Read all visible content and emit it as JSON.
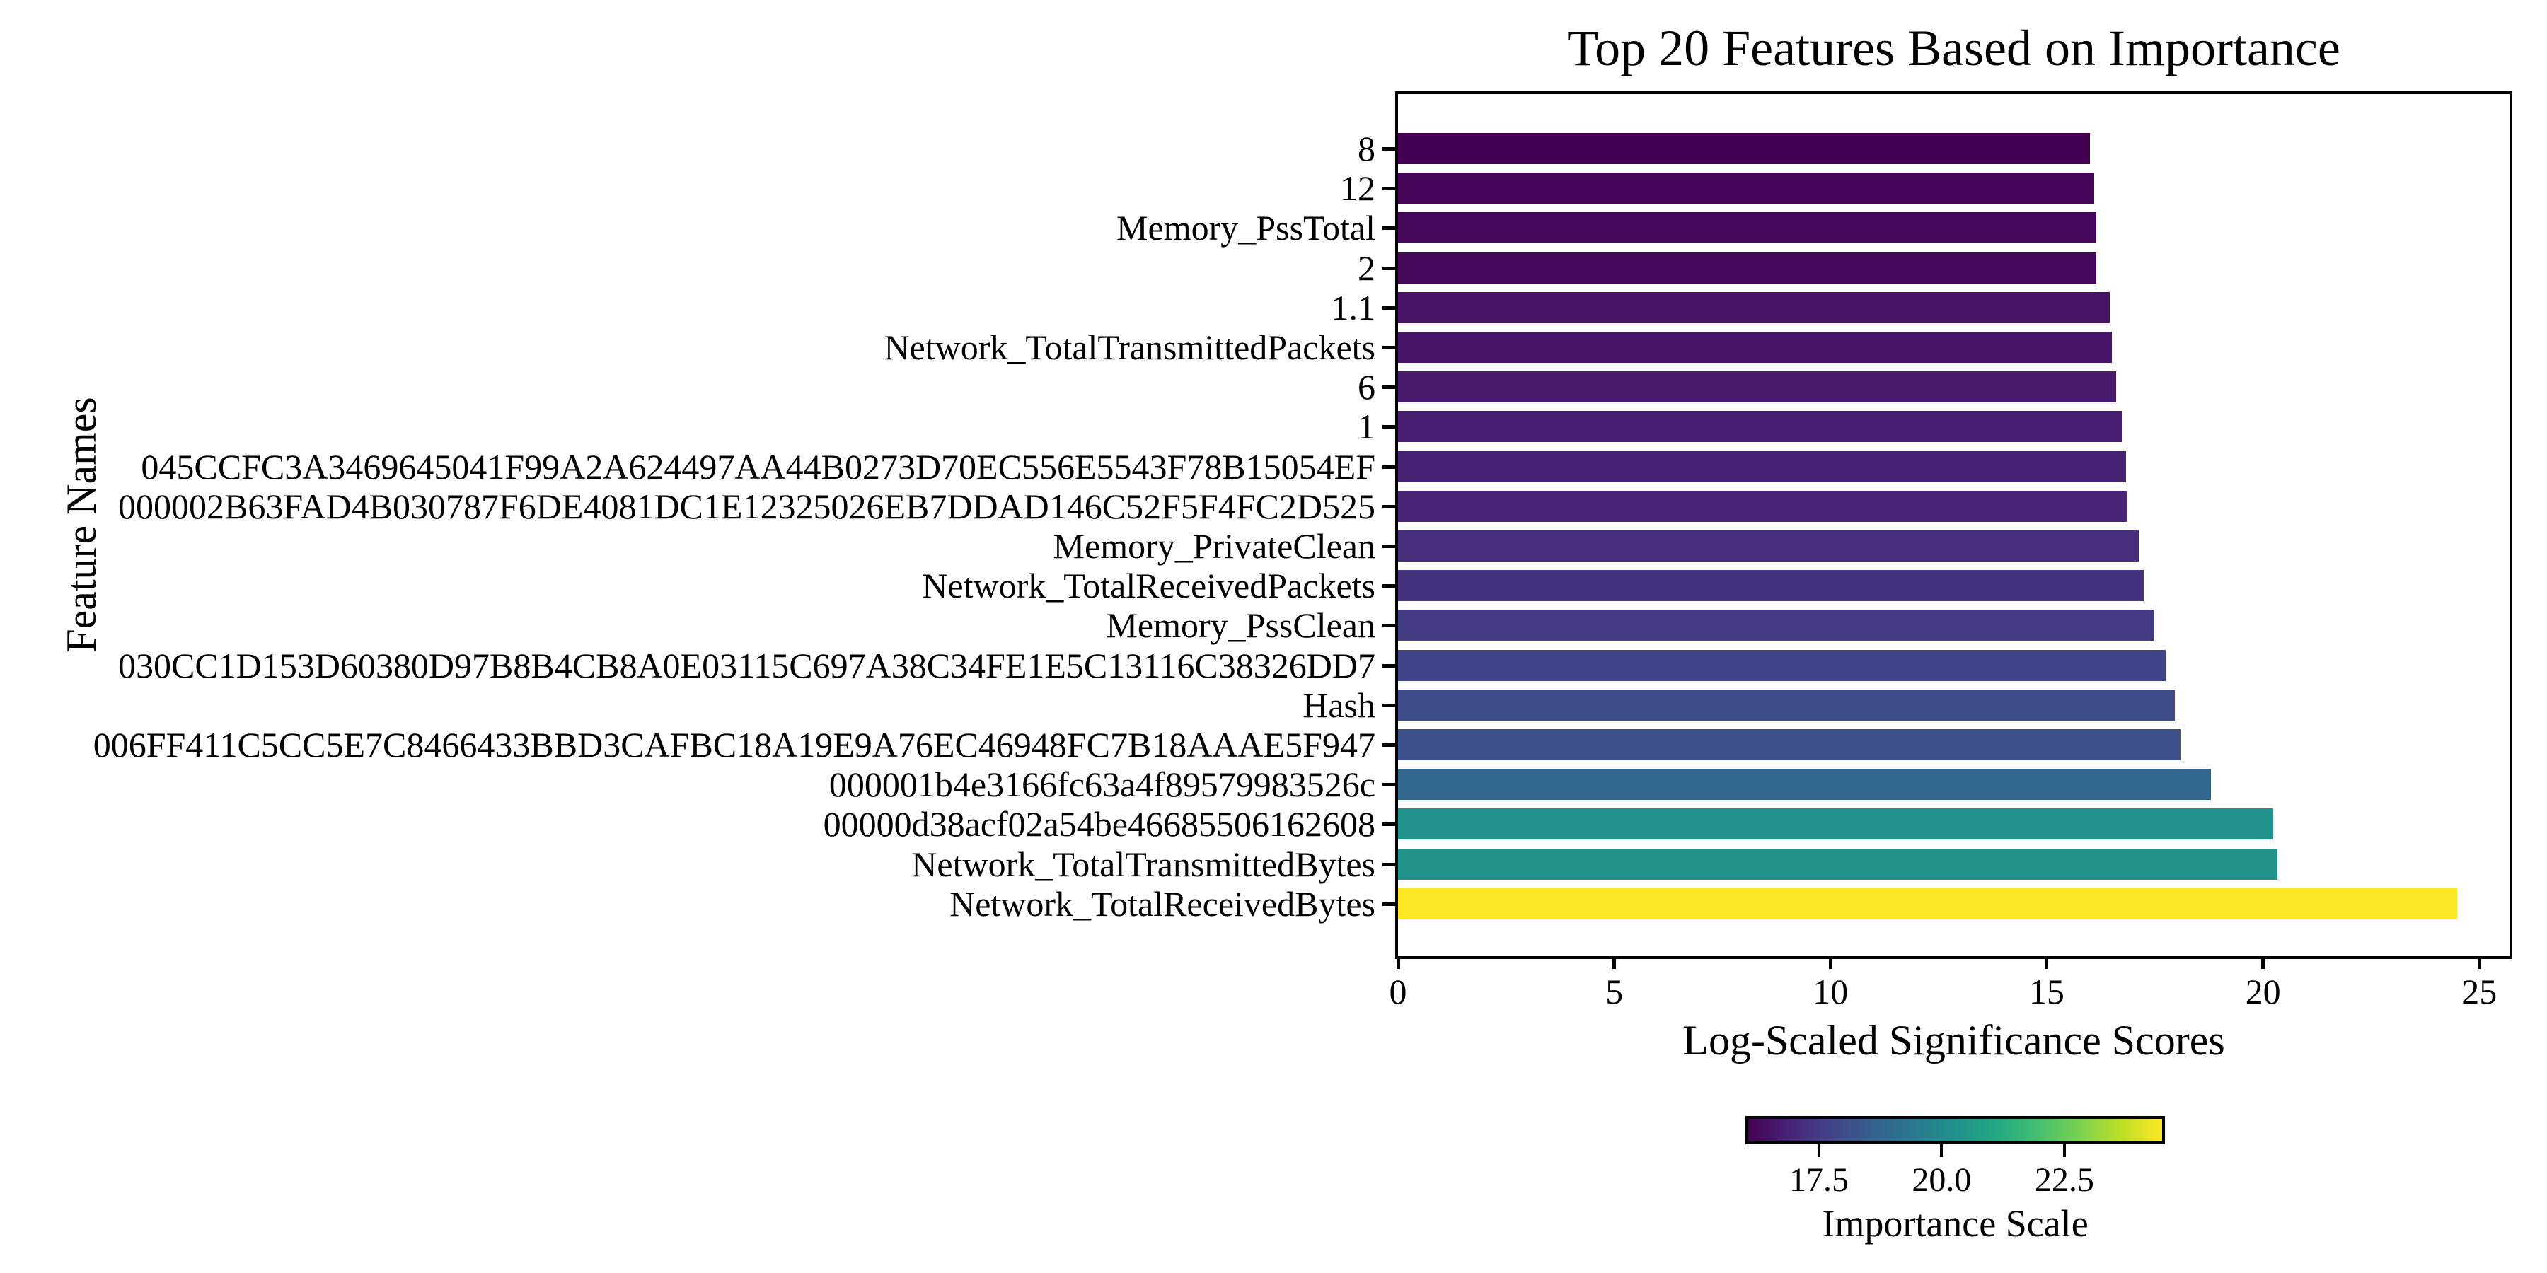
{
  "chart_data": {
    "type": "bar",
    "orientation": "horizontal",
    "title": "Top 20 Features Based on Importance",
    "xlabel": "Log-Scaled Significance Scores",
    "ylabel": "Feature Names",
    "xlim": [
      0,
      25.7
    ],
    "xticks": [
      0,
      5,
      10,
      15,
      20,
      25
    ],
    "grid": false,
    "categories": [
      "8",
      "12",
      "Memory_PssTotal",
      "2",
      "1.1",
      "Network_TotalTransmittedPackets",
      "6",
      "1",
      "045CCFC3A3469645041F99A2A624497AA44B0273D70EC556E5543F78B15054EF",
      "000002B63FAD4B030787F6DE4081DC1E12325026EB7DDAD146C52F5F4FC2D525",
      "Memory_PrivateClean",
      "Network_TotalReceivedPackets",
      "Memory_PssClean",
      "030CC1D153D60380D97B8B4CB8A0E03115C697A38C34FE1E5C13116C38326DD7",
      "Hash",
      "006FF411C5CC5E7C8466433BBD3CAFBC18A19E9A76EC46948FC7B18AAAE5F947",
      "000001b4e3166fc63a4f89579983526c",
      "00000d38acf02a54be46685506162608",
      "Network_TotalTransmittedBytes",
      "Network_TotalReceivedBytes"
    ],
    "values": [
      16.0,
      16.1,
      16.15,
      16.15,
      16.45,
      16.5,
      16.6,
      16.75,
      16.83,
      16.86,
      17.13,
      17.24,
      17.48,
      17.75,
      17.97,
      18.09,
      18.79,
      20.24,
      20.34,
      24.49
    ],
    "bar_colors": [
      "#440154",
      "#440458",
      "#45075a",
      "#45075a",
      "#461365",
      "#461567",
      "#471a6b",
      "#481f71",
      "#482374",
      "#482475",
      "#462e7b",
      "#45327d",
      "#433c82",
      "#404587",
      "#3d4c89",
      "#3c508a",
      "#31668d",
      "#21918c",
      "#21938b",
      "#fde725"
    ],
    "colorbar": {
      "label": "Importance Scale",
      "tick_labels": [
        "17.5",
        "20.0",
        "22.5"
      ],
      "tick_values": [
        17.5,
        20.0,
        22.5
      ],
      "vmin": 16.0,
      "vmax": 24.55,
      "colormap": "viridis",
      "gradient_stops": [
        "#440154",
        "#482475",
        "#414487",
        "#355f8d",
        "#2a788e",
        "#21918c",
        "#22a884",
        "#44bf70",
        "#7ad151",
        "#bddf26",
        "#fde725"
      ]
    },
    "colors": {
      "background": "#ffffff",
      "text": "#000000",
      "axis": "#000000"
    }
  }
}
